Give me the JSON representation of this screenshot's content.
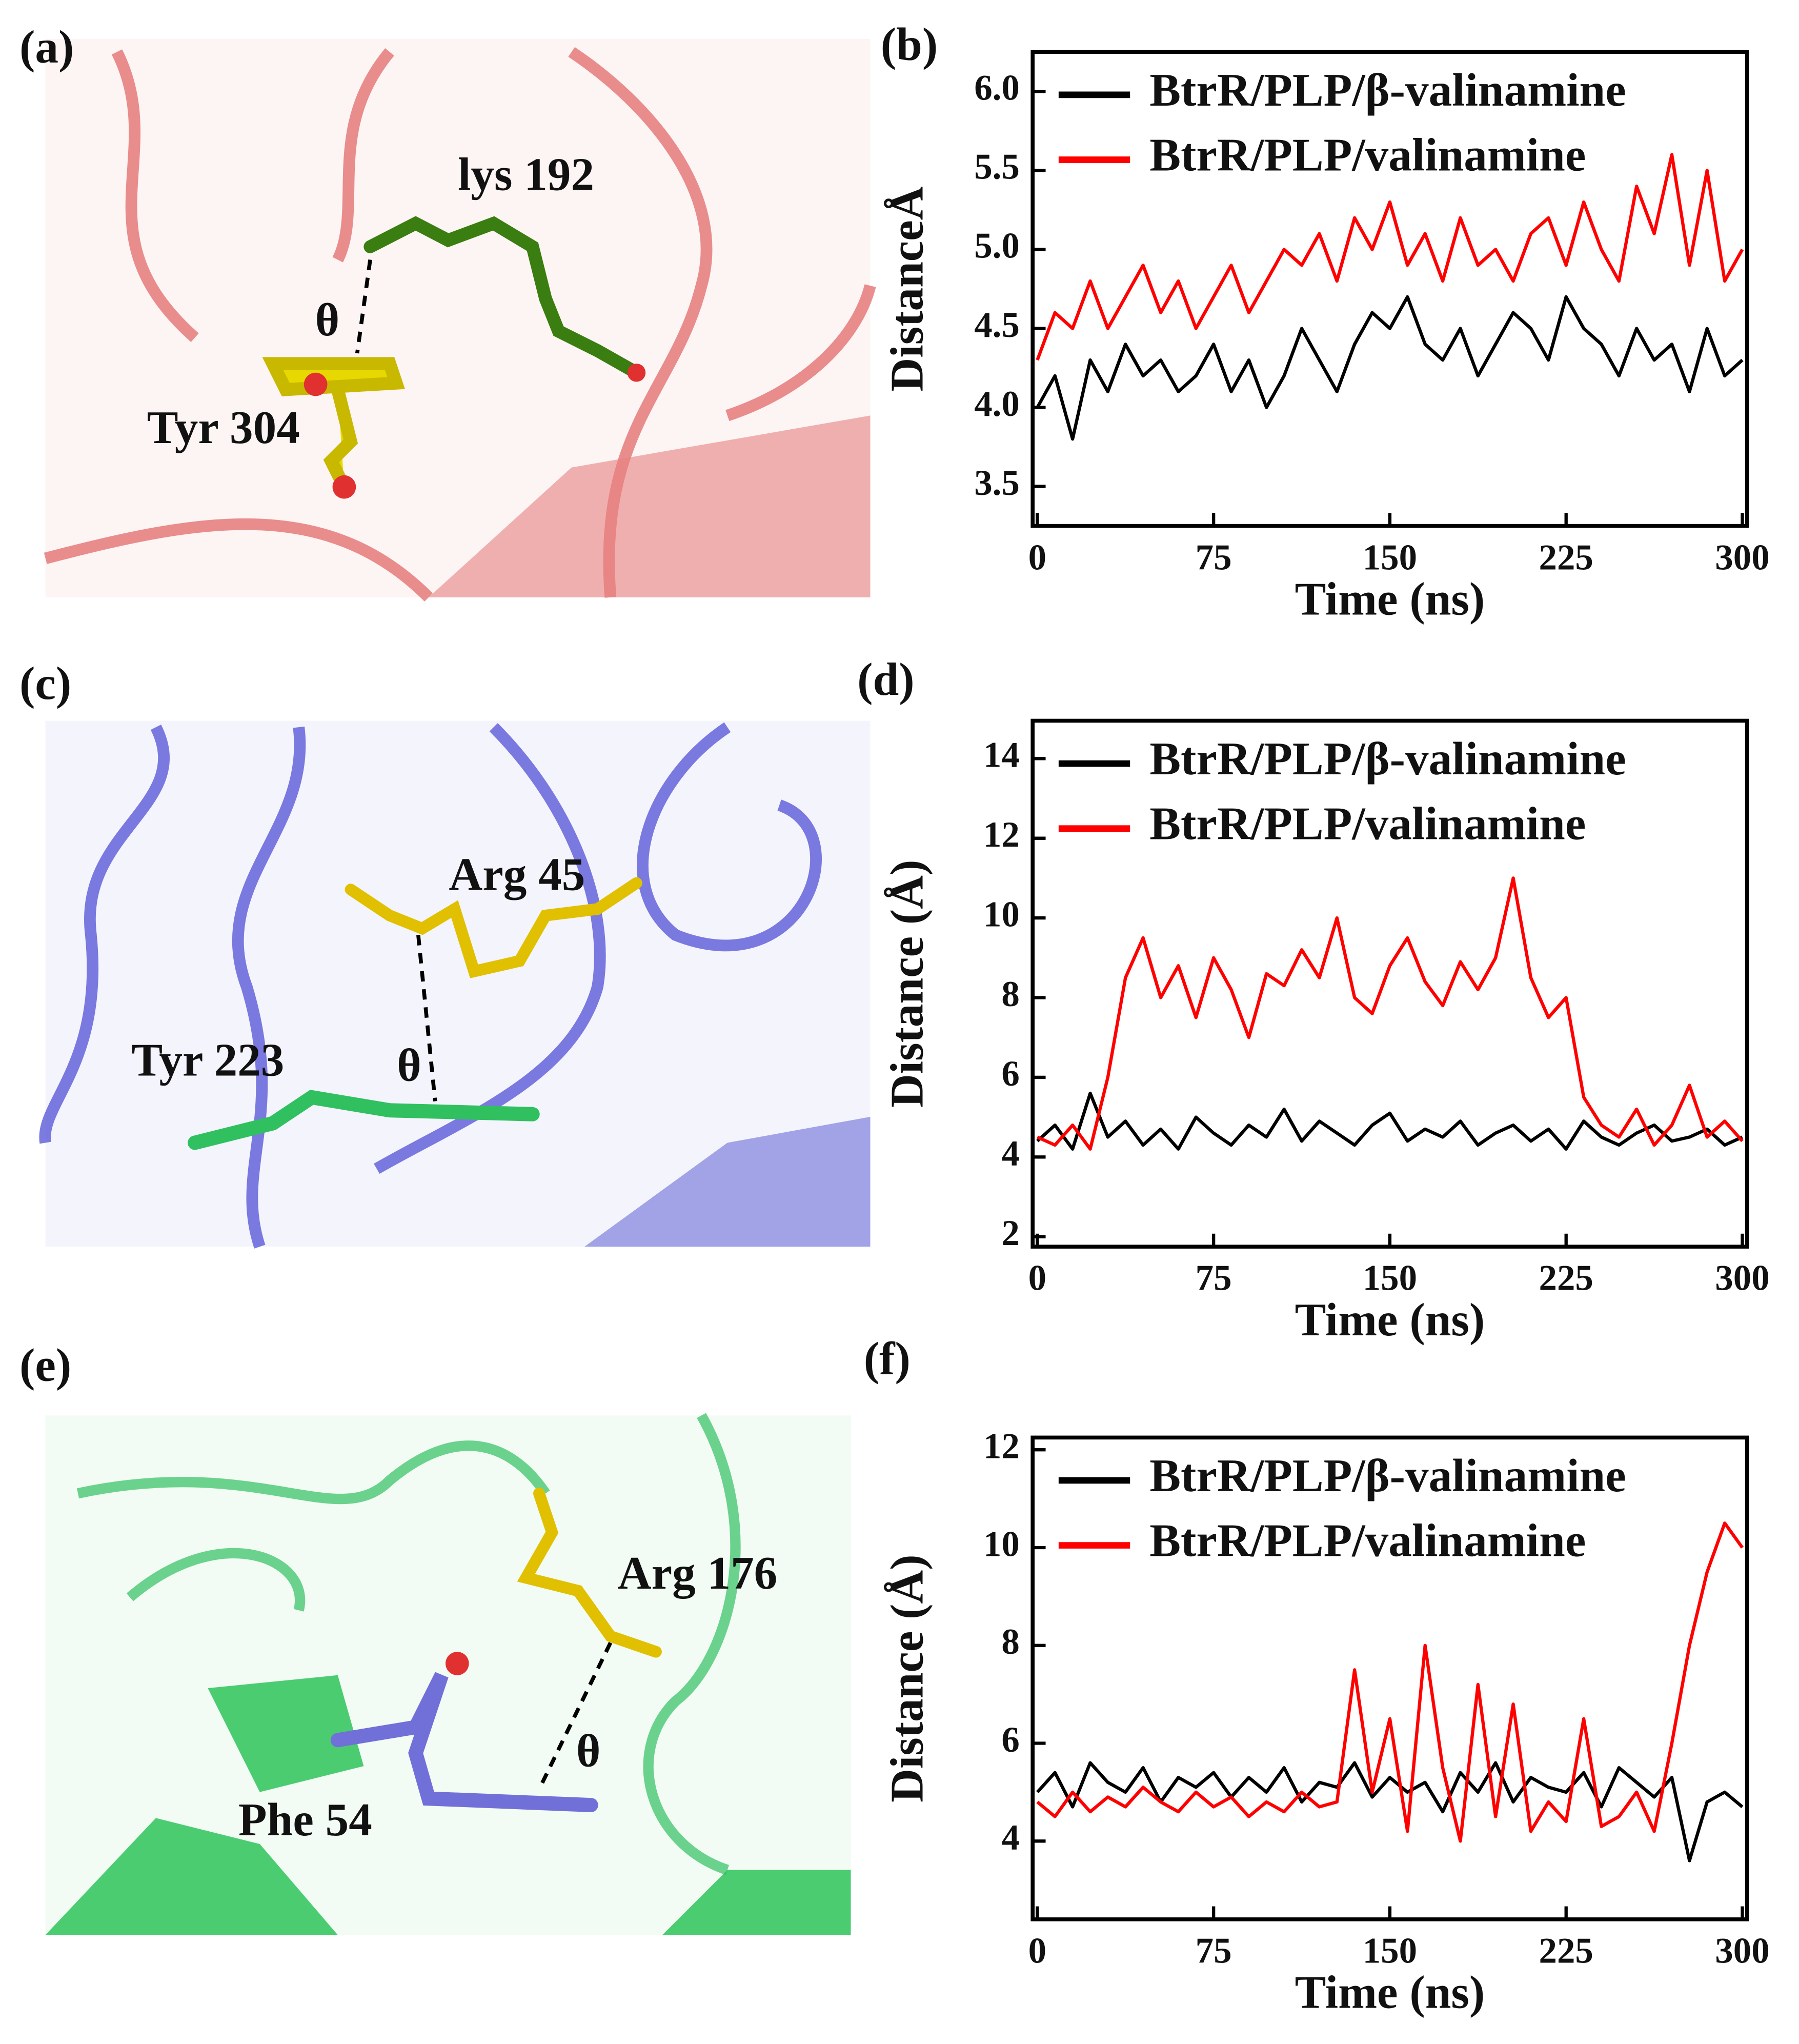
{
  "structures": [
    {
      "panel_label": "(a)",
      "labels": [
        "lys 192",
        "θ",
        "Tyr 304"
      ]
    },
    {
      "panel_label": "(c)",
      "labels": [
        "Arg 45",
        "Tyr 223",
        "θ"
      ]
    },
    {
      "panel_label": "(e)",
      "labels": [
        "Arg 176",
        "θ",
        "Phe 54"
      ]
    }
  ],
  "chart_data": [
    {
      "type": "line",
      "panel_label": "(b)",
      "x_label": "Time (ns)",
      "y_label": "DistanceÅ",
      "x": [
        0,
        7.5,
        15,
        22.5,
        30,
        37.5,
        45,
        52.5,
        60,
        67.5,
        75,
        82.5,
        90,
        97.5,
        105,
        112.5,
        120,
        127.5,
        135,
        142.5,
        150,
        157.5,
        165,
        172.5,
        180,
        187.5,
        195,
        202.5,
        210,
        217.5,
        225,
        232.5,
        240,
        247.5,
        255,
        262.5,
        270,
        277.5,
        285,
        292.5,
        300
      ],
      "xlim": [
        -2,
        302
      ],
      "xticks": [
        0,
        75,
        150,
        225,
        300
      ],
      "ylim": [
        3.25,
        6.25
      ],
      "yticks": [
        3.5,
        {
          "value": 4,
          "label": "4.0"
        },
        4.5,
        {
          "value": 5,
          "label": "5.0"
        },
        5.5,
        {
          "value": 6,
          "label": "6.0"
        }
      ],
      "legend": "upper left",
      "series": [
        {
          "name": "BtrR/PLP/β-valinamine",
          "color": "#000000",
          "values": [
            4.0,
            4.2,
            3.8,
            4.3,
            4.1,
            4.4,
            4.2,
            4.3,
            4.1,
            4.2,
            4.4,
            4.1,
            4.3,
            4.0,
            4.2,
            4.5,
            4.3,
            4.1,
            4.4,
            4.6,
            4.5,
            4.7,
            4.4,
            4.3,
            4.5,
            4.2,
            4.4,
            4.6,
            4.5,
            4.3,
            4.7,
            4.5,
            4.4,
            4.2,
            4.5,
            4.3,
            4.4,
            4.1,
            4.5,
            4.2,
            4.3
          ]
        },
        {
          "name": "BtrR/PLP/valinamine",
          "color": "#ff0000",
          "values": [
            4.3,
            4.6,
            4.5,
            4.8,
            4.5,
            4.7,
            4.9,
            4.6,
            4.8,
            4.5,
            4.7,
            4.9,
            4.6,
            4.8,
            5.0,
            4.9,
            5.1,
            4.8,
            5.2,
            5.0,
            5.3,
            4.9,
            5.1,
            4.8,
            5.2,
            4.9,
            5.0,
            4.8,
            5.1,
            5.2,
            4.9,
            5.3,
            5.0,
            4.8,
            5.4,
            5.1,
            5.6,
            4.9,
            5.5,
            4.8,
            5.0
          ]
        }
      ]
    },
    {
      "type": "line",
      "panel_label": "(d)",
      "x_label": "Time (ns)",
      "y_label": "Distance (Å)",
      "x": [
        0,
        7.5,
        15,
        22.5,
        30,
        37.5,
        45,
        52.5,
        60,
        67.5,
        75,
        82.5,
        90,
        97.5,
        105,
        112.5,
        120,
        127.5,
        135,
        142.5,
        150,
        157.5,
        165,
        172.5,
        180,
        187.5,
        195,
        202.5,
        210,
        217.5,
        225,
        232.5,
        240,
        247.5,
        255,
        262.5,
        270,
        277.5,
        285,
        292.5,
        300
      ],
      "xlim": [
        -2,
        302
      ],
      "xticks": [
        0,
        75,
        150,
        225,
        300
      ],
      "ylim": [
        1.75,
        14.95
      ],
      "yticks": [
        2,
        4,
        6,
        8,
        10,
        12,
        14
      ],
      "legend": "upper left",
      "series": [
        {
          "name": "BtrR/PLP/β-valinamine",
          "color": "#000000",
          "values": [
            4.4,
            4.8,
            4.2,
            5.6,
            4.5,
            4.9,
            4.3,
            4.7,
            4.2,
            5.0,
            4.6,
            4.3,
            4.8,
            4.5,
            5.2,
            4.4,
            4.9,
            4.6,
            4.3,
            4.8,
            5.1,
            4.4,
            4.7,
            4.5,
            4.9,
            4.3,
            4.6,
            4.8,
            4.4,
            4.7,
            4.2,
            4.9,
            4.5,
            4.3,
            4.6,
            4.8,
            4.4,
            4.5,
            4.7,
            4.3,
            4.5
          ]
        },
        {
          "name": "BtrR/PLP/valinamine",
          "color": "#ff0000",
          "values": [
            4.5,
            4.3,
            4.8,
            4.2,
            6.0,
            8.5,
            9.5,
            8.0,
            8.8,
            7.5,
            9.0,
            8.2,
            7.0,
            8.6,
            8.3,
            9.2,
            8.5,
            10.0,
            8.0,
            7.6,
            8.8,
            9.5,
            8.4,
            7.8,
            8.9,
            8.2,
            9.0,
            11.0,
            8.5,
            7.5,
            8.0,
            5.5,
            4.8,
            4.5,
            5.2,
            4.3,
            4.8,
            5.8,
            4.5,
            4.9,
            4.4
          ]
        }
      ]
    },
    {
      "type": "line",
      "panel_label": "(f)",
      "x_label": "Time (ns)",
      "y_label": "Distance (Å)",
      "x": [
        0,
        7.5,
        15,
        22.5,
        30,
        37.5,
        45,
        52.5,
        60,
        67.5,
        75,
        82.5,
        90,
        97.5,
        105,
        112.5,
        120,
        127.5,
        135,
        142.5,
        150,
        157.5,
        165,
        172.5,
        180,
        187.5,
        195,
        202.5,
        210,
        217.5,
        225,
        232.5,
        240,
        247.5,
        255,
        262.5,
        270,
        277.5,
        285,
        292.5,
        300
      ],
      "xlim": [
        -2,
        302
      ],
      "xticks": [
        0,
        75,
        150,
        225,
        300
      ],
      "ylim": [
        2.4,
        12.25
      ],
      "yticks": [
        4,
        6,
        8,
        10,
        12
      ],
      "legend": "upper left",
      "series": [
        {
          "name": "BtrR/PLP/β-valinamine",
          "color": "#000000",
          "values": [
            5.0,
            5.4,
            4.7,
            5.6,
            5.2,
            5.0,
            5.5,
            4.8,
            5.3,
            5.1,
            5.4,
            4.9,
            5.3,
            5.0,
            5.5,
            4.8,
            5.2,
            5.1,
            5.6,
            4.9,
            5.3,
            5.0,
            5.2,
            4.6,
            5.4,
            5.0,
            5.6,
            4.8,
            5.3,
            5.1,
            5.0,
            5.4,
            4.7,
            5.5,
            5.2,
            4.9,
            5.3,
            3.6,
            4.8,
            5.0,
            4.7
          ]
        },
        {
          "name": "BtrR/PLP/valinamine",
          "color": "#ff0000",
          "values": [
            4.8,
            4.5,
            5.0,
            4.6,
            4.9,
            4.7,
            5.1,
            4.8,
            4.6,
            5.0,
            4.7,
            4.9,
            4.5,
            4.8,
            4.6,
            5.0,
            4.7,
            4.8,
            7.5,
            5.0,
            6.5,
            4.2,
            8.0,
            5.5,
            4.0,
            7.2,
            4.5,
            6.8,
            4.2,
            4.8,
            4.4,
            6.5,
            4.3,
            4.5,
            5.0,
            4.2,
            6.0,
            8.0,
            9.5,
            10.5,
            10.0
          ]
        }
      ]
    }
  ]
}
